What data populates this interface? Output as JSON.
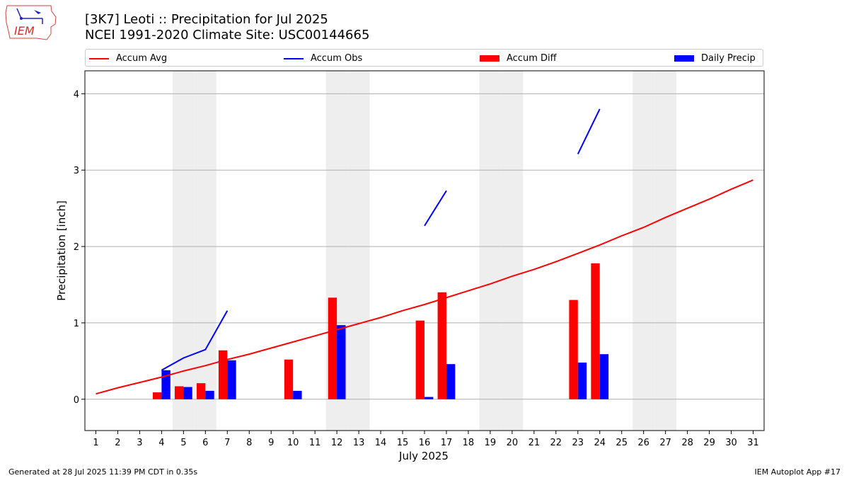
{
  "header": {
    "title_line1": "[3K7] Leoti :: Precipitation for Jul 2025",
    "title_line2": "NCEI 1991-2020 Climate Site: USC00144665",
    "logo_text": "IEM"
  },
  "legend": {
    "accum_avg": "Accum Avg",
    "accum_obs": "Accum Obs",
    "accum_diff": "Accum Diff",
    "daily_precip": "Daily Precip"
  },
  "footer": {
    "left": "Generated at 28 Jul 2025 11:39 PM CDT in 0.35s",
    "right": "IEM Autoplot App #17"
  },
  "colors": {
    "accum_avg": "#ff0000",
    "accum_obs": "#0000ff",
    "accum_diff": "#ff0000",
    "daily_precip": "#0000ff",
    "weekend_shade": "#eeeeee",
    "grid": "#b0b0b0"
  },
  "chart_data": {
    "type": "bar",
    "title": "[3K7] Leoti :: Precipitation for Jul 2025",
    "subtitle": "NCEI 1991-2020 Climate Site: USC00144665",
    "xlabel": "July 2025",
    "ylabel": "Precipitation [inch]",
    "ylim": [
      -0.41,
      4.3
    ],
    "yticks": [
      0,
      1,
      2,
      3,
      4
    ],
    "grid": "horizontal",
    "legend_position": "top",
    "days": [
      1,
      2,
      3,
      4,
      5,
      6,
      7,
      8,
      9,
      10,
      11,
      12,
      13,
      14,
      15,
      16,
      17,
      18,
      19,
      20,
      21,
      22,
      23,
      24,
      25,
      26,
      27,
      28,
      29,
      30,
      31
    ],
    "weekend_days": [
      5,
      6,
      12,
      13,
      19,
      20,
      26,
      27
    ],
    "accum_avg": [
      0.07,
      0.15,
      0.22,
      0.29,
      0.37,
      0.44,
      0.52,
      0.59,
      0.67,
      0.75,
      0.83,
      0.91,
      0.99,
      1.07,
      1.16,
      1.24,
      1.33,
      1.42,
      1.51,
      1.61,
      1.7,
      1.8,
      1.91,
      2.02,
      2.14,
      2.25,
      2.38,
      2.5,
      2.62,
      2.75,
      2.87
    ],
    "accum_obs_segments": [
      {
        "days": [
          4,
          5,
          6,
          7
        ],
        "values": [
          0.38,
          0.54,
          0.65,
          1.16
        ]
      },
      {
        "days": [
          16,
          17
        ],
        "values": [
          2.27,
          2.73
        ]
      },
      {
        "days": [
          23,
          24
        ],
        "values": [
          3.21,
          3.8
        ]
      }
    ],
    "accum_diff": [
      {
        "day": 4,
        "value": 0.09
      },
      {
        "day": 5,
        "value": 0.17
      },
      {
        "day": 6,
        "value": 0.21
      },
      {
        "day": 7,
        "value": 0.64
      },
      {
        "day": 10,
        "value": 0.52
      },
      {
        "day": 12,
        "value": 1.33
      },
      {
        "day": 16,
        "value": 1.03
      },
      {
        "day": 17,
        "value": 1.4
      },
      {
        "day": 23,
        "value": 1.3
      },
      {
        "day": 24,
        "value": 1.78
      }
    ],
    "daily_precip": [
      {
        "day": 4,
        "value": 0.38
      },
      {
        "day": 5,
        "value": 0.16
      },
      {
        "day": 6,
        "value": 0.11
      },
      {
        "day": 7,
        "value": 0.51
      },
      {
        "day": 10,
        "value": 0.11
      },
      {
        "day": 12,
        "value": 0.97
      },
      {
        "day": 16,
        "value": 0.03
      },
      {
        "day": 17,
        "value": 0.46
      },
      {
        "day": 23,
        "value": 0.48
      },
      {
        "day": 24,
        "value": 0.59
      }
    ]
  }
}
